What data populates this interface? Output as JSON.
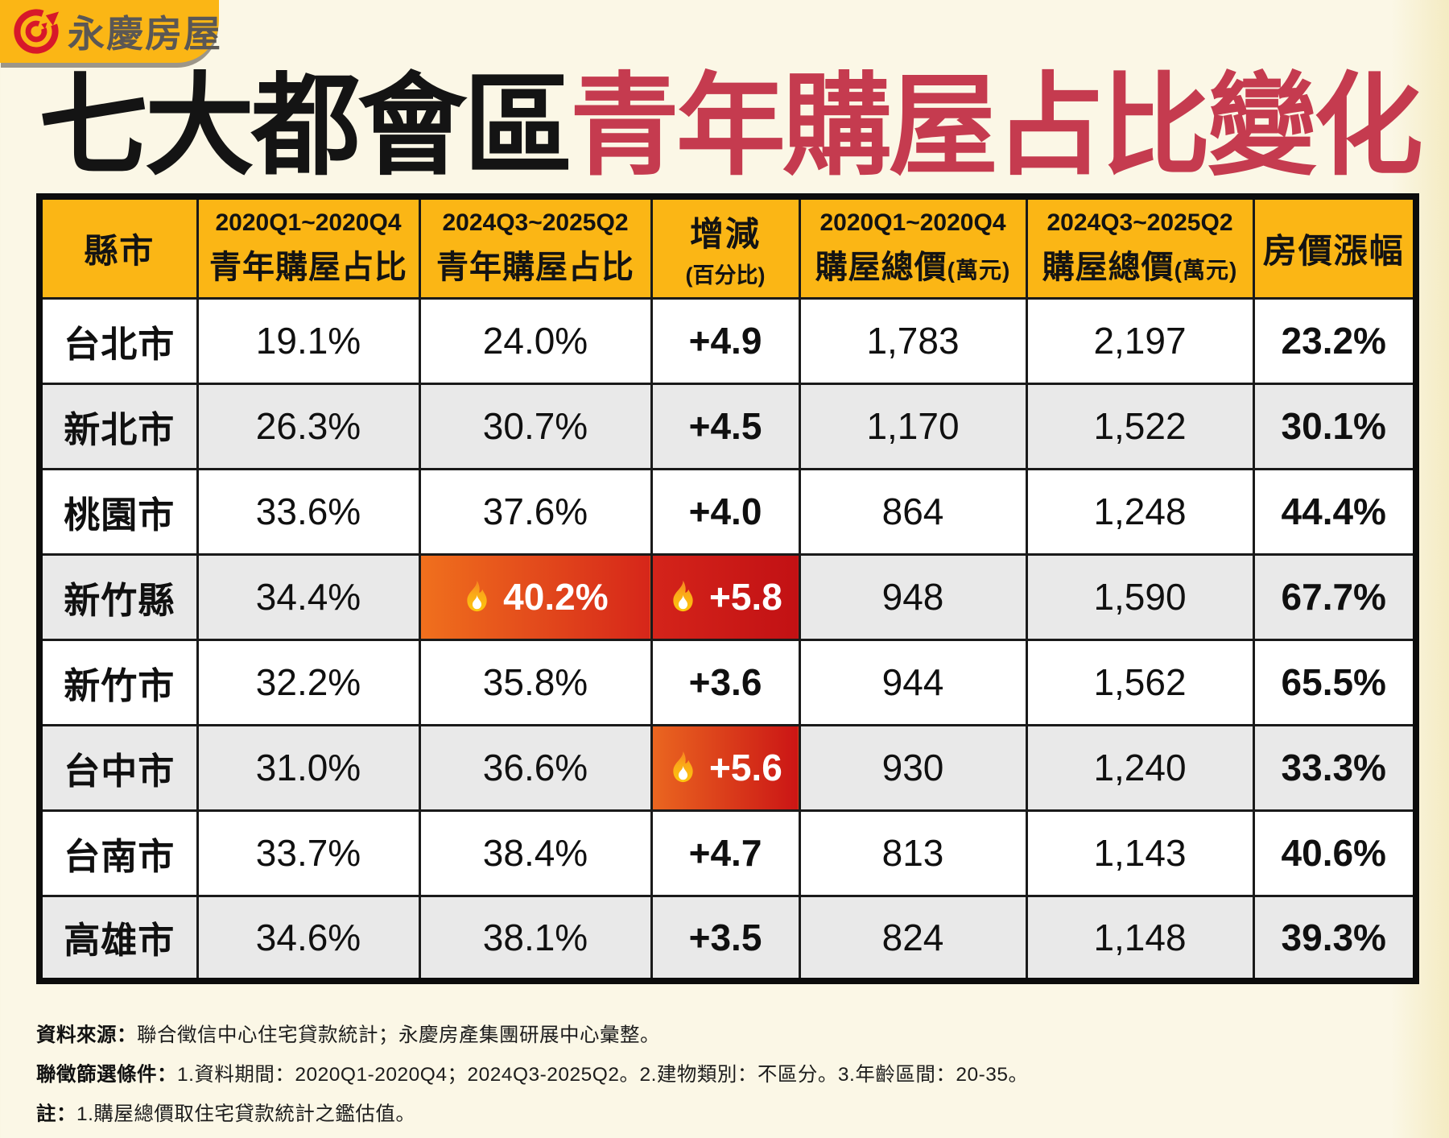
{
  "logo": {
    "brand": "永慶房屋"
  },
  "title": {
    "black_part": "七大都會區",
    "red_part": "青年購屋占比變化"
  },
  "colors": {
    "background": "#FBF7E6",
    "brand_yellow": "#FBB615",
    "title_red": "#C53B4F",
    "logo_red": "#D7182A",
    "row_gray": "#E9E9E9",
    "highlight_orange": "#EA6620",
    "highlight_red": "#C21114"
  },
  "table": {
    "headers": [
      {
        "label": "縣市"
      },
      {
        "period": "2020Q1~2020Q4",
        "label": "青年購屋占比"
      },
      {
        "period": "2024Q3~2025Q2",
        "label": "青年購屋占比"
      },
      {
        "label": "增減",
        "sub": "(百分比)"
      },
      {
        "period": "2020Q1~2020Q4",
        "label": "購屋總價",
        "unit": "(萬元)"
      },
      {
        "period": "2024Q3~2025Q2",
        "label": "購屋總價",
        "unit": "(萬元)"
      },
      {
        "label": "房價漲幅"
      }
    ],
    "column_keys": [
      "city",
      "ratio2020",
      "ratio2024",
      "change",
      "price2020",
      "price2024",
      "growth"
    ],
    "rows": [
      {
        "city": "台北市",
        "ratio2020": "19.1%",
        "ratio2024": "24.0%",
        "change": "+4.9",
        "price2020": "1,783",
        "price2024": "2,197",
        "growth": "23.2%"
      },
      {
        "city": "新北市",
        "ratio2020": "26.3%",
        "ratio2024": "30.7%",
        "change": "+4.5",
        "price2020": "1,170",
        "price2024": "1,522",
        "growth": "30.1%"
      },
      {
        "city": "桃園市",
        "ratio2020": "33.6%",
        "ratio2024": "37.6%",
        "change": "+4.0",
        "price2020": "864",
        "price2024": "1,248",
        "growth": "44.4%"
      },
      {
        "city": "新竹縣",
        "ratio2020": "34.4%",
        "ratio2024": "40.2%",
        "change": "+5.8",
        "price2020": "948",
        "price2024": "1,590",
        "growth": "67.7%",
        "highlight": {
          "ratio2024": "a",
          "change": "b"
        }
      },
      {
        "city": "新竹市",
        "ratio2020": "32.2%",
        "ratio2024": "35.8%",
        "change": "+3.6",
        "price2020": "944",
        "price2024": "1,562",
        "growth": "65.5%"
      },
      {
        "city": "台中市",
        "ratio2020": "31.0%",
        "ratio2024": "36.6%",
        "change": "+5.6",
        "price2020": "930",
        "price2024": "1,240",
        "growth": "33.3%",
        "highlight": {
          "change": "c"
        }
      },
      {
        "city": "台南市",
        "ratio2020": "33.7%",
        "ratio2024": "38.4%",
        "change": "+4.7",
        "price2020": "813",
        "price2024": "1,143",
        "growth": "40.6%"
      },
      {
        "city": "高雄市",
        "ratio2020": "34.6%",
        "ratio2024": "38.1%",
        "change": "+3.5",
        "price2020": "824",
        "price2024": "1,148",
        "growth": "39.3%"
      }
    ]
  },
  "footnotes": [
    {
      "label": "資料來源：",
      "text": "聯合徵信中心住宅貸款統計；永慶房產集團研展中心彙整。"
    },
    {
      "label": "聯徵篩選條件：",
      "text": "1.資料期間：2020Q1-2020Q4；2024Q3-2025Q2。2.建物類別：不區分。3.年齡區間：20-35。"
    },
    {
      "label": "註：",
      "text": "1.購屋總價取住宅貸款統計之鑑估值。"
    }
  ],
  "chart_data": {
    "type": "table",
    "title": "七大都會區青年購屋占比變化",
    "columns": [
      "縣市",
      "2020Q1~2020Q4 青年購屋占比",
      "2024Q3~2025Q2 青年購屋占比",
      "增減(百分比)",
      "2020Q1~2020Q4 購屋總價(萬元)",
      "2024Q3~2025Q2 購屋總價(萬元)",
      "房價漲幅"
    ],
    "rows": [
      [
        "台北市",
        19.1,
        24.0,
        4.9,
        1783,
        2197,
        23.2
      ],
      [
        "新北市",
        26.3,
        30.7,
        4.5,
        1170,
        1522,
        30.1
      ],
      [
        "桃園市",
        33.6,
        37.6,
        4.0,
        864,
        1248,
        44.4
      ],
      [
        "新竹縣",
        34.4,
        40.2,
        5.8,
        948,
        1590,
        67.7
      ],
      [
        "新竹市",
        32.2,
        35.8,
        3.6,
        944,
        1562,
        65.5
      ],
      [
        "台中市",
        31.0,
        36.6,
        5.6,
        930,
        1240,
        33.3
      ],
      [
        "台南市",
        33.7,
        38.4,
        4.7,
        813,
        1143,
        40.6
      ],
      [
        "高雄市",
        34.6,
        38.1,
        3.5,
        824,
        1148,
        39.3
      ]
    ],
    "highlighted_cells": [
      {
        "row": "新竹縣",
        "column": "2024Q3~2025Q2 青年購屋占比",
        "value": 40.2
      },
      {
        "row": "新竹縣",
        "column": "增減(百分比)",
        "value": 5.8
      },
      {
        "row": "台中市",
        "column": "增減(百分比)",
        "value": 5.6
      }
    ],
    "units": {
      "ratios": "percent",
      "prices": "萬元 (10k TWD)"
    }
  }
}
